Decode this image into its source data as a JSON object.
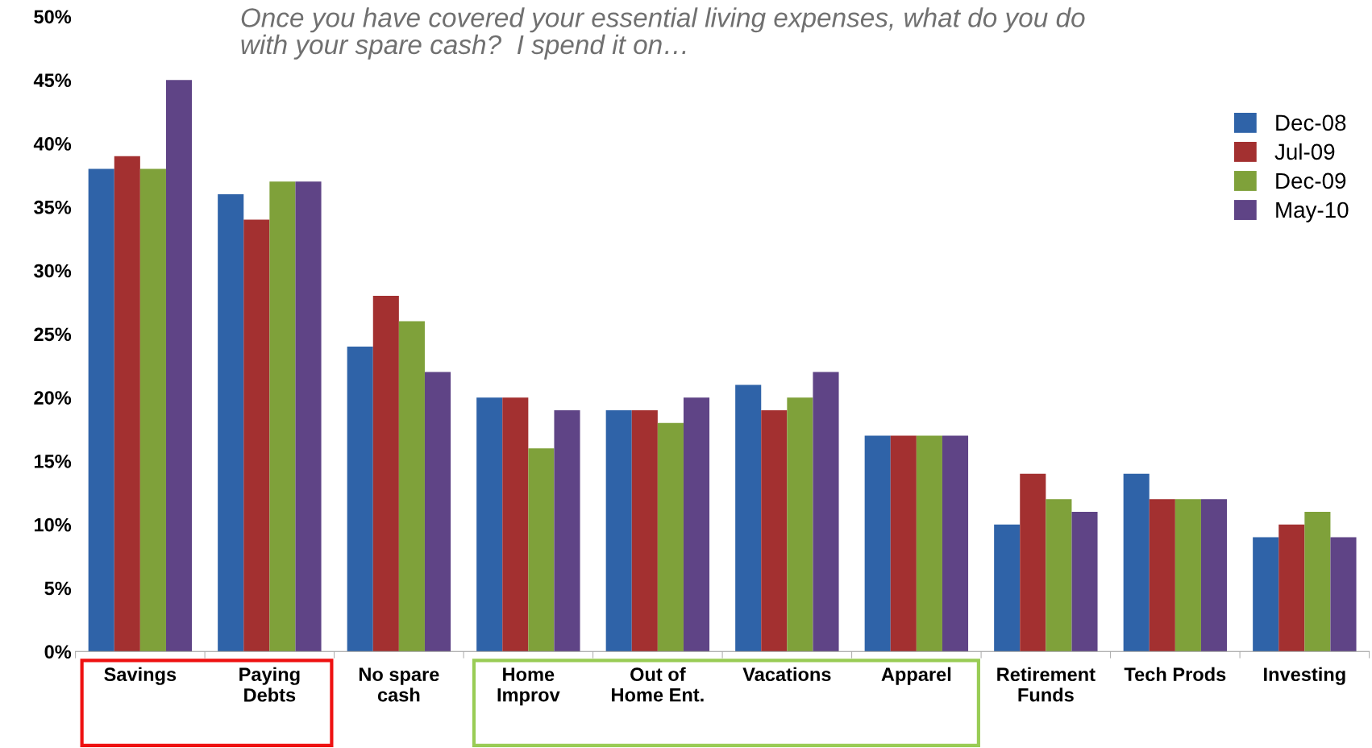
{
  "chart_data": {
    "type": "bar",
    "title": "Once you have covered your essential living expenses, what do you do with your spare cash?  I spend it on…",
    "categories": [
      "Savings",
      "Paying\nDebts",
      "No spare\ncash",
      "Home\nImprov",
      "Out of\nHome Ent.",
      "Vacations",
      "Apparel",
      "Retirement\nFunds",
      "Tech Prods",
      "Investing"
    ],
    "series": [
      {
        "name": "Dec-08",
        "color": "#2f63a8",
        "values": [
          38,
          36,
          24,
          20,
          19,
          21,
          17,
          10,
          14,
          9
        ]
      },
      {
        "name": "Jul-09",
        "color": "#a33030",
        "values": [
          39,
          34,
          28,
          20,
          19,
          19,
          17,
          14,
          12,
          10
        ]
      },
      {
        "name": "Dec-09",
        "color": "#7fa13a",
        "values": [
          38,
          37,
          26,
          16,
          18,
          20,
          17,
          12,
          12,
          11
        ]
      },
      {
        "name": "May-10",
        "color": "#5f4486",
        "values": [
          45,
          37,
          22,
          19,
          20,
          22,
          17,
          11,
          12,
          9
        ]
      }
    ],
    "ylim": [
      0,
      50
    ],
    "yticks": [
      {
        "value": 0,
        "label": "0%"
      },
      {
        "value": 5,
        "label": "5%"
      },
      {
        "value": 10,
        "label": "10%"
      },
      {
        "value": 15,
        "label": "15%"
      },
      {
        "value": 20,
        "label": "20%"
      },
      {
        "value": 25,
        "label": "25%"
      },
      {
        "value": 30,
        "label": "30%"
      },
      {
        "value": 35,
        "label": "35%"
      },
      {
        "value": 40,
        "label": "40%"
      },
      {
        "value": 45,
        "label": "45%"
      },
      {
        "value": 50,
        "label": "50%"
      }
    ],
    "grid": false,
    "legend": "top right"
  }
}
